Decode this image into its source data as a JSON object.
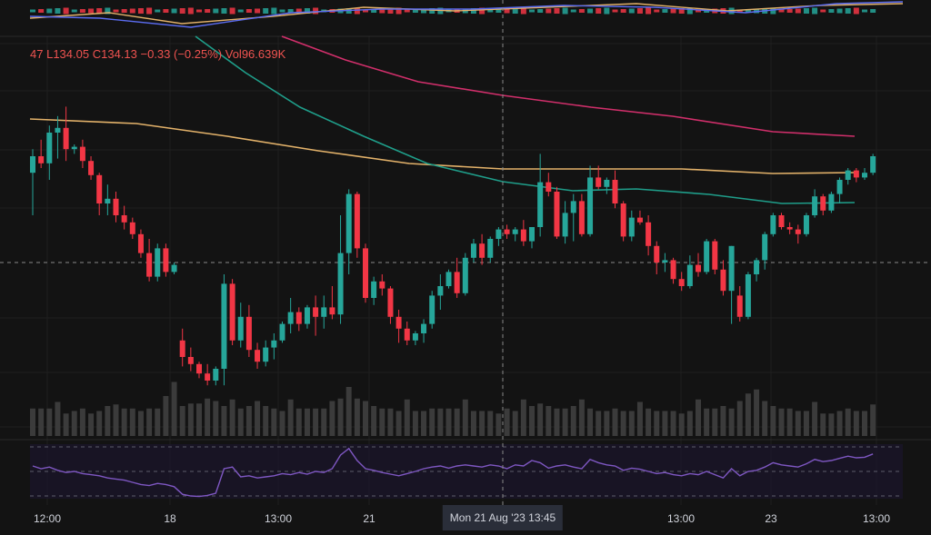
{
  "legend": {
    "open_label": "47",
    "low_label": "L",
    "low_value": "134.05",
    "close_label": "C",
    "close_value": "134.13",
    "change": "−0.33 (−0.25%)",
    "vol_label": "Vol",
    "vol_value": "96.639K"
  },
  "crosshair_label": "Mon 21 Aug '23   13:45",
  "colors": {
    "up": "#26a69a",
    "down": "#f23645",
    "ma_pink": "#d12f6b",
    "ma_gold": "#e3b26a",
    "ma_teal": "#1f9e8a",
    "rsi": "#7e57c2",
    "grid": "#1f1f1f",
    "volume": "#3b3b3b"
  },
  "chart_data": {
    "type": "candlestick",
    "x_ticks": [
      "12:00",
      "18",
      "13:00",
      "21",
      "13:00",
      "23",
      "13:00"
    ],
    "candles": [
      {
        "o": 0.38,
        "h": 0.48,
        "l": 0.2,
        "c": 0.45
      },
      {
        "o": 0.45,
        "h": 0.52,
        "l": 0.4,
        "c": 0.42
      },
      {
        "o": 0.42,
        "h": 0.58,
        "l": 0.35,
        "c": 0.55
      },
      {
        "o": 0.55,
        "h": 0.62,
        "l": 0.44,
        "c": 0.57
      },
      {
        "o": 0.57,
        "h": 0.66,
        "l": 0.43,
        "c": 0.48
      },
      {
        "o": 0.48,
        "h": 0.5,
        "l": 0.46,
        "c": 0.49
      },
      {
        "o": 0.49,
        "h": 0.52,
        "l": 0.4,
        "c": 0.43
      },
      {
        "o": 0.43,
        "h": 0.45,
        "l": 0.35,
        "c": 0.37
      },
      {
        "o": 0.37,
        "h": 0.38,
        "l": 0.2,
        "c": 0.25
      },
      {
        "o": 0.25,
        "h": 0.33,
        "l": 0.2,
        "c": 0.27
      },
      {
        "o": 0.27,
        "h": 0.3,
        "l": 0.17,
        "c": 0.2
      },
      {
        "o": 0.2,
        "h": 0.24,
        "l": 0.14,
        "c": 0.17
      },
      {
        "o": 0.17,
        "h": 0.19,
        "l": 0.1,
        "c": 0.12
      },
      {
        "o": 0.12,
        "h": 0.14,
        "l": 0.02,
        "c": 0.04
      },
      {
        "o": 0.04,
        "h": 0.1,
        "l": -0.08,
        "c": -0.06
      },
      {
        "o": -0.06,
        "h": 0.08,
        "l": -0.08,
        "c": 0.06
      },
      {
        "o": 0.06,
        "h": 0.08,
        "l": -0.06,
        "c": -0.04
      },
      {
        "o": -0.04,
        "h": 0.0,
        "l": -0.05,
        "c": -0.01
      },
      {
        "o": -0.33,
        "h": -0.28,
        "l": -0.44,
        "c": -0.4
      },
      {
        "o": -0.4,
        "h": -0.36,
        "l": -0.46,
        "c": -0.43
      },
      {
        "o": -0.43,
        "h": -0.42,
        "l": -0.49,
        "c": -0.47
      },
      {
        "o": -0.47,
        "h": -0.43,
        "l": -0.52,
        "c": -0.5
      },
      {
        "o": -0.5,
        "h": -0.44,
        "l": -0.52,
        "c": -0.45
      },
      {
        "o": -0.45,
        "h": -0.05,
        "l": -0.52,
        "c": -0.09
      },
      {
        "o": -0.09,
        "h": -0.07,
        "l": -0.35,
        "c": -0.33
      },
      {
        "o": -0.33,
        "h": -0.17,
        "l": -0.36,
        "c": -0.23
      },
      {
        "o": -0.23,
        "h": -0.18,
        "l": -0.4,
        "c": -0.37
      },
      {
        "o": -0.37,
        "h": -0.34,
        "l": -0.45,
        "c": -0.42
      },
      {
        "o": -0.42,
        "h": -0.33,
        "l": -0.44,
        "c": -0.36
      },
      {
        "o": -0.36,
        "h": -0.3,
        "l": -0.41,
        "c": -0.33
      },
      {
        "o": -0.33,
        "h": -0.25,
        "l": -0.34,
        "c": -0.26
      },
      {
        "o": -0.26,
        "h": -0.15,
        "l": -0.3,
        "c": -0.21
      },
      {
        "o": -0.21,
        "h": -0.19,
        "l": -0.29,
        "c": -0.26
      },
      {
        "o": -0.26,
        "h": -0.18,
        "l": -0.28,
        "c": -0.19
      },
      {
        "o": -0.19,
        "h": -0.14,
        "l": -0.31,
        "c": -0.23
      },
      {
        "o": -0.23,
        "h": -0.14,
        "l": -0.28,
        "c": -0.19
      },
      {
        "o": -0.19,
        "h": -0.1,
        "l": -0.24,
        "c": -0.22
      },
      {
        "o": -0.22,
        "h": 0.2,
        "l": -0.26,
        "c": 0.04
      },
      {
        "o": 0.04,
        "h": 0.31,
        "l": -0.05,
        "c": 0.29
      },
      {
        "o": 0.29,
        "h": 0.3,
        "l": 0.02,
        "c": 0.06
      },
      {
        "o": 0.06,
        "h": 0.08,
        "l": -0.17,
        "c": -0.15
      },
      {
        "o": -0.15,
        "h": -0.06,
        "l": -0.18,
        "c": -0.08
      },
      {
        "o": -0.08,
        "h": -0.05,
        "l": -0.14,
        "c": -0.11
      },
      {
        "o": -0.11,
        "h": -0.1,
        "l": -0.26,
        "c": -0.23
      },
      {
        "o": -0.23,
        "h": -0.2,
        "l": -0.34,
        "c": -0.28
      },
      {
        "o": -0.28,
        "h": -0.25,
        "l": -0.35,
        "c": -0.33
      },
      {
        "o": -0.33,
        "h": -0.29,
        "l": -0.35,
        "c": -0.3
      },
      {
        "o": -0.3,
        "h": -0.24,
        "l": -0.34,
        "c": -0.26
      },
      {
        "o": -0.26,
        "h": -0.12,
        "l": -0.28,
        "c": -0.14
      },
      {
        "o": -0.14,
        "h": -0.05,
        "l": -0.2,
        "c": -0.1
      },
      {
        "o": -0.1,
        "h": -0.03,
        "l": -0.11,
        "c": -0.04
      },
      {
        "o": -0.04,
        "h": 0.02,
        "l": -0.15,
        "c": -0.13
      },
      {
        "o": -0.13,
        "h": 0.04,
        "l": -0.14,
        "c": 0.02
      },
      {
        "o": 0.02,
        "h": 0.1,
        "l": 0.0,
        "c": 0.08
      },
      {
        "o": 0.08,
        "h": 0.12,
        "l": -0.01,
        "c": 0.02
      },
      {
        "o": 0.02,
        "h": 0.11,
        "l": 0.0,
        "c": 0.1
      },
      {
        "o": 0.1,
        "h": 0.15,
        "l": 0.07,
        "c": 0.14
      },
      {
        "o": 0.14,
        "h": 0.16,
        "l": 0.1,
        "c": 0.12
      },
      {
        "o": 0.12,
        "h": 0.15,
        "l": 0.09,
        "c": 0.14
      },
      {
        "o": 0.14,
        "h": 0.18,
        "l": 0.07,
        "c": 0.09
      },
      {
        "o": 0.09,
        "h": 0.15,
        "l": 0.06,
        "c": 0.15
      },
      {
        "o": 0.15,
        "h": 0.46,
        "l": 0.11,
        "c": 0.34
      },
      {
        "o": 0.34,
        "h": 0.38,
        "l": 0.28,
        "c": 0.3
      },
      {
        "o": 0.3,
        "h": 0.32,
        "l": 0.1,
        "c": 0.11
      },
      {
        "o": 0.11,
        "h": 0.26,
        "l": 0.08,
        "c": 0.21
      },
      {
        "o": 0.21,
        "h": 0.29,
        "l": 0.09,
        "c": 0.26
      },
      {
        "o": 0.26,
        "h": 0.29,
        "l": 0.11,
        "c": 0.12
      },
      {
        "o": 0.12,
        "h": 0.41,
        "l": 0.11,
        "c": 0.36
      },
      {
        "o": 0.36,
        "h": 0.41,
        "l": 0.31,
        "c": 0.32
      },
      {
        "o": 0.32,
        "h": 0.36,
        "l": 0.29,
        "c": 0.35
      },
      {
        "o": 0.35,
        "h": 0.39,
        "l": 0.23,
        "c": 0.25
      },
      {
        "o": 0.25,
        "h": 0.26,
        "l": 0.09,
        "c": 0.11
      },
      {
        "o": 0.11,
        "h": 0.22,
        "l": 0.09,
        "c": 0.19
      },
      {
        "o": 0.19,
        "h": 0.22,
        "l": 0.16,
        "c": 0.17
      },
      {
        "o": 0.17,
        "h": 0.2,
        "l": 0.03,
        "c": 0.07
      },
      {
        "o": 0.07,
        "h": 0.09,
        "l": -0.05,
        "c": 0.0
      },
      {
        "o": 0.0,
        "h": 0.04,
        "l": -0.04,
        "c": 0.01
      },
      {
        "o": 0.01,
        "h": 0.02,
        "l": -0.09,
        "c": -0.07
      },
      {
        "o": -0.07,
        "h": -0.04,
        "l": -0.12,
        "c": -0.1
      },
      {
        "o": -0.1,
        "h": 0.03,
        "l": -0.11,
        "c": -0.01
      },
      {
        "o": -0.01,
        "h": 0.04,
        "l": -0.06,
        "c": -0.04
      },
      {
        "o": -0.04,
        "h": 0.1,
        "l": -0.05,
        "c": 0.09
      },
      {
        "o": 0.09,
        "h": 0.1,
        "l": -0.05,
        "c": -0.03
      },
      {
        "o": -0.03,
        "h": 0.01,
        "l": -0.14,
        "c": -0.12
      },
      {
        "o": -0.12,
        "h": 0.07,
        "l": -0.26,
        "c": 0.07
      },
      {
        "o": -0.14,
        "h": -0.1,
        "l": -0.25,
        "c": -0.23
      },
      {
        "o": -0.23,
        "h": -0.04,
        "l": -0.24,
        "c": -0.05
      },
      {
        "o": -0.05,
        "h": 0.02,
        "l": -0.08,
        "c": 0.01
      },
      {
        "o": 0.01,
        "h": 0.13,
        "l": -0.03,
        "c": 0.12
      },
      {
        "o": 0.12,
        "h": 0.21,
        "l": 0.11,
        "c": 0.2
      },
      {
        "o": 0.2,
        "h": 0.21,
        "l": 0.14,
        "c": 0.15
      },
      {
        "o": 0.15,
        "h": 0.17,
        "l": 0.12,
        "c": 0.14
      },
      {
        "o": 0.14,
        "h": 0.16,
        "l": 0.08,
        "c": 0.12
      },
      {
        "o": 0.12,
        "h": 0.21,
        "l": 0.11,
        "c": 0.2
      },
      {
        "o": 0.2,
        "h": 0.31,
        "l": 0.19,
        "c": 0.28
      },
      {
        "o": 0.28,
        "h": 0.29,
        "l": 0.2,
        "c": 0.22
      },
      {
        "o": 0.22,
        "h": 0.3,
        "l": 0.21,
        "c": 0.29
      },
      {
        "o": 0.29,
        "h": 0.36,
        "l": 0.25,
        "c": 0.35
      },
      {
        "o": 0.35,
        "h": 0.4,
        "l": 0.33,
        "c": 0.39
      },
      {
        "o": 0.39,
        "h": 0.4,
        "l": 0.34,
        "c": 0.36
      },
      {
        "o": 0.36,
        "h": 0.4,
        "l": 0.35,
        "c": 0.38
      },
      {
        "o": 0.38,
        "h": 0.46,
        "l": 0.37,
        "c": 0.45
      }
    ],
    "volume": [
      0.55,
      0.55,
      0.55,
      0.5,
      0.45,
      0.5,
      0.55,
      0.45,
      0.5,
      0.6,
      0.45,
      0.55,
      0.55,
      0.5,
      0.55,
      0.55,
      0.8,
      0.9,
      0.6,
      0.65,
      0.65,
      0.75,
      0.7,
      0.6,
      0.55,
      0.55,
      0.6,
      0.7,
      0.6,
      0.55,
      0.5,
      0.55,
      0.55,
      0.55,
      0.55,
      0.55,
      0.7,
      0.75,
      0.8,
      0.75,
      0.7,
      0.6,
      0.55,
      0.55,
      0.5,
      0.55,
      0.5,
      0.5,
      0.55,
      0.55,
      0.55,
      0.55,
      0.55,
      0.5,
      0.5,
      0.5,
      0.45,
      0.55,
      0.5,
      0.55,
      0.6,
      0.65,
      0.6,
      0.55,
      0.55,
      0.6,
      0.55,
      0.55,
      0.5,
      0.5,
      0.55,
      0.5,
      0.5,
      0.5,
      0.55,
      0.5,
      0.5,
      0.5,
      0.45,
      0.5,
      0.55,
      0.55,
      0.55,
      0.6,
      0.55,
      0.7,
      0.85,
      0.75,
      0.7,
      0.6,
      0.55,
      0.55,
      0.5,
      0.5,
      0.5,
      0.45,
      0.45,
      0.5,
      0.55,
      0.5,
      0.5,
      0.45
    ],
    "rsi": [
      0.6,
      0.55,
      0.58,
      0.52,
      0.48,
      0.5,
      0.46,
      0.44,
      0.42,
      0.38,
      0.36,
      0.34,
      0.3,
      0.26,
      0.24,
      0.28,
      0.26,
      0.22,
      0.08,
      0.05,
      0.04,
      0.06,
      0.1,
      0.55,
      0.58,
      0.4,
      0.42,
      0.38,
      0.4,
      0.42,
      0.46,
      0.44,
      0.48,
      0.45,
      0.5,
      0.48,
      0.55,
      0.8,
      0.92,
      0.7,
      0.55,
      0.52,
      0.48,
      0.45,
      0.42,
      0.46,
      0.5,
      0.55,
      0.58,
      0.6,
      0.56,
      0.6,
      0.62,
      0.6,
      0.58,
      0.62,
      0.6,
      0.55,
      0.62,
      0.6,
      0.7,
      0.66,
      0.56,
      0.6,
      0.62,
      0.58,
      0.55,
      0.72,
      0.66,
      0.62,
      0.6,
      0.52,
      0.56,
      0.54,
      0.5,
      0.46,
      0.48,
      0.44,
      0.42,
      0.46,
      0.44,
      0.5,
      0.44,
      0.38,
      0.55,
      0.42,
      0.5,
      0.52,
      0.58,
      0.66,
      0.62,
      0.6,
      0.58,
      0.64,
      0.72,
      0.68,
      0.7,
      0.74,
      0.78,
      0.75,
      0.76,
      0.82
    ]
  }
}
